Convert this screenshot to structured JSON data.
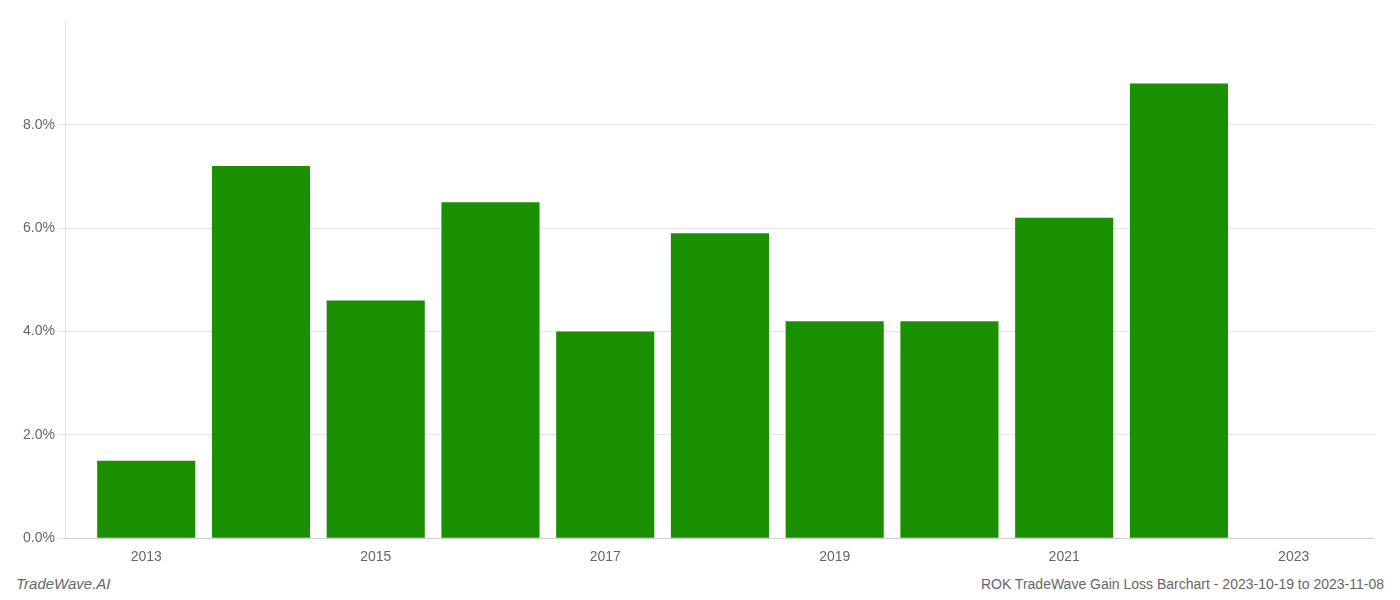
{
  "chart_data": {
    "type": "bar",
    "title": "ROK TradeWave Gain Loss Barchart - 2023-10-19 to 2023-11-08",
    "annotations": [
      "TradeWave.AI"
    ],
    "x": [
      2013,
      2014,
      2015,
      2016,
      2017,
      2018,
      2019,
      2020,
      2021,
      2022
    ],
    "values": [
      0.015,
      0.072,
      0.046,
      0.065,
      0.04,
      0.059,
      0.042,
      0.042,
      0.062,
      0.088
    ],
    "color": "#1a9000",
    "xlim": [
      2012.3,
      2023.7
    ],
    "xticks": [
      2013,
      2015,
      2017,
      2019,
      2021,
      2023
    ],
    "ylim": [
      0,
      0.1
    ],
    "yticks": [
      {
        "value": 0.0,
        "label": "0.0%"
      },
      {
        "value": 0.02,
        "label": "2.0%"
      },
      {
        "value": 0.04,
        "label": "4.0%"
      },
      {
        "value": 0.06,
        "label": "6.0%"
      },
      {
        "value": 0.08,
        "label": "8.0%"
      }
    ],
    "grid": true
  }
}
